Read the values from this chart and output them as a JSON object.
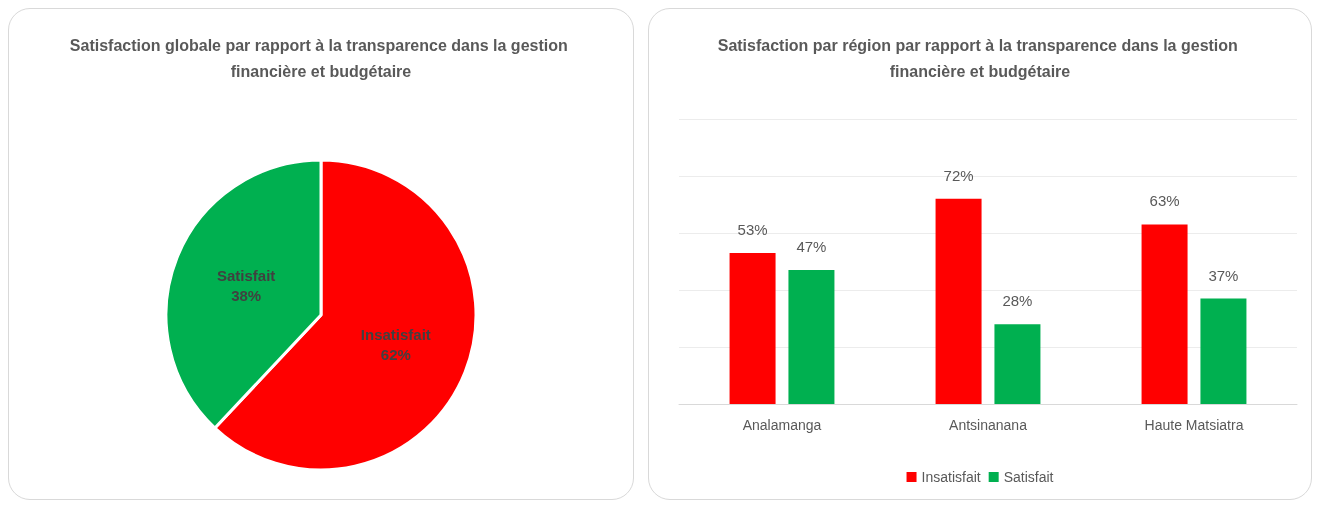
{
  "chart_data": [
    {
      "type": "pie",
      "title": "Satisfaction globale par rapport à la transparence dans la gestion financière et budgétaire",
      "categories": [
        "Insatisfait",
        "Satisfait"
      ],
      "values": [
        62,
        38
      ],
      "colors": [
        "#ff0000",
        "#00b050"
      ],
      "value_labels": [
        "62%",
        "38%"
      ],
      "legend": false
    },
    {
      "type": "bar",
      "title": "Satisfaction par région par rapport à la transparence dans la gestion financière et budgétaire",
      "categories": [
        "Analamanga",
        "Antsinanana",
        "Haute Matsiatra"
      ],
      "series": [
        {
          "name": "Insatisfait",
          "color": "#ff0000",
          "values": [
            53,
            72,
            63
          ],
          "value_labels": [
            "53%",
            "72%",
            "63%"
          ]
        },
        {
          "name": "Satisfait",
          "color": "#00b050",
          "values": [
            47,
            28,
            37
          ],
          "value_labels": [
            "47%",
            "28%",
            "37%"
          ]
        }
      ],
      "ylim": [
        0,
        100
      ],
      "yticks": [
        {
          "value": 0,
          "label": null
        },
        {
          "value": 20,
          "label": null
        },
        {
          "value": 40,
          "label": null
        },
        {
          "value": 60,
          "label": null
        },
        {
          "value": 80,
          "label": null
        },
        {
          "value": 100,
          "label": null
        }
      ],
      "grid": "y",
      "tick_labels": "x",
      "legend": "bottom"
    }
  ]
}
